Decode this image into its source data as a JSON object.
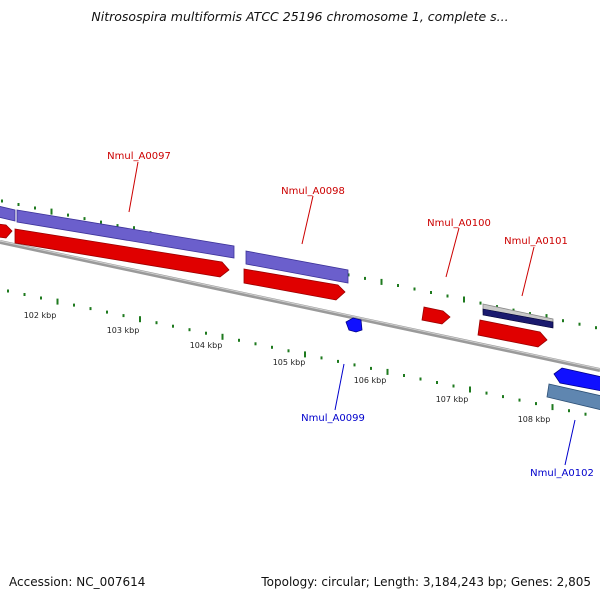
{
  "title": "Nitrosospira multiformis ATCC 25196 chromosome 1, complete s...",
  "footer": {
    "accession": "Accession: NC_007614",
    "summary": "Topology: circular; Length: 3,184,243 bp; Genes: 2,805"
  },
  "colors": {
    "background": "#ffffff",
    "backbone": "#888888",
    "tick": "#1e7a1e",
    "plus_gene": "#6b5fcc",
    "plus_cds": "#e00000",
    "minus_gene": "#2a2aee",
    "minus_gene_alt": "#5f86b0",
    "highlight_gene": "#1a1a6e",
    "label_plus": "#cc0000",
    "label_minus": "#0000cc",
    "scale_text": "#222222"
  },
  "scale": {
    "labels": [
      "102 kbp",
      "103 kbp",
      "104 kbp",
      "105 kbp",
      "106 kbp",
      "107 kbp",
      "108 kbp"
    ]
  },
  "genes": [
    {
      "label": "Nmul_A0097",
      "strand": "+"
    },
    {
      "label": "Nmul_A0098",
      "strand": "+"
    },
    {
      "label": "Nmul_A0099",
      "strand": "-"
    },
    {
      "label": "Nmul_A0100",
      "strand": "+"
    },
    {
      "label": "Nmul_A0101",
      "strand": "+"
    },
    {
      "label": "Nmul_A0102",
      "strand": "-"
    }
  ]
}
